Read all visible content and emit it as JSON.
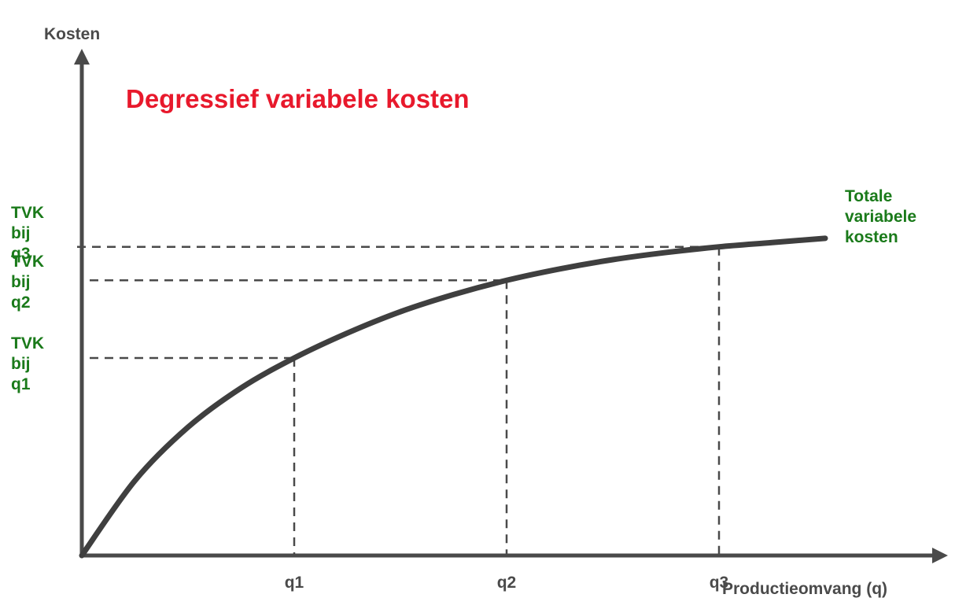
{
  "chart_data": {
    "type": "line",
    "title": "Degressief variabele kosten",
    "xlabel": "Productieomvang (q)",
    "ylabel": "Kosten",
    "series": [
      {
        "name": "Totale variabele kosten",
        "x": [
          0,
          0.25,
          0.5,
          0.75,
          1.0,
          1.25,
          1.5,
          1.75,
          2.0,
          2.25,
          2.5,
          2.75,
          3.0,
          3.25,
          3.5
        ],
        "y": [
          0,
          1.05,
          1.8,
          2.35,
          2.77,
          3.12,
          3.42,
          3.66,
          3.86,
          4.02,
          4.15,
          4.25,
          4.33,
          4.39,
          4.45
        ]
      }
    ],
    "x_marks": [
      {
        "label": "q1",
        "x": 1.0,
        "y": 2.77,
        "ylabel_lines": [
          "TVK",
          "bij",
          "q1"
        ]
      },
      {
        "label": "q2",
        "x": 2.0,
        "y": 3.86,
        "ylabel_lines": [
          "TVK",
          "bij",
          "q2"
        ]
      },
      {
        "label": "q3",
        "x": 3.0,
        "y": 4.33,
        "ylabel_lines": [
          "TVK",
          "bij",
          "q3"
        ]
      }
    ],
    "series_label_lines": [
      "Totale",
      "variabele",
      "kosten"
    ],
    "xlim": [
      0,
      4.1
    ],
    "ylim": [
      0,
      5.8
    ],
    "grid": false,
    "legend": "none",
    "colors": {
      "axis": "#4a4a4a",
      "curve": "#3f3f3f",
      "title": "#e8192c",
      "labels_green": "#1a7a1a",
      "axis_text": "#4a4a4a"
    }
  }
}
